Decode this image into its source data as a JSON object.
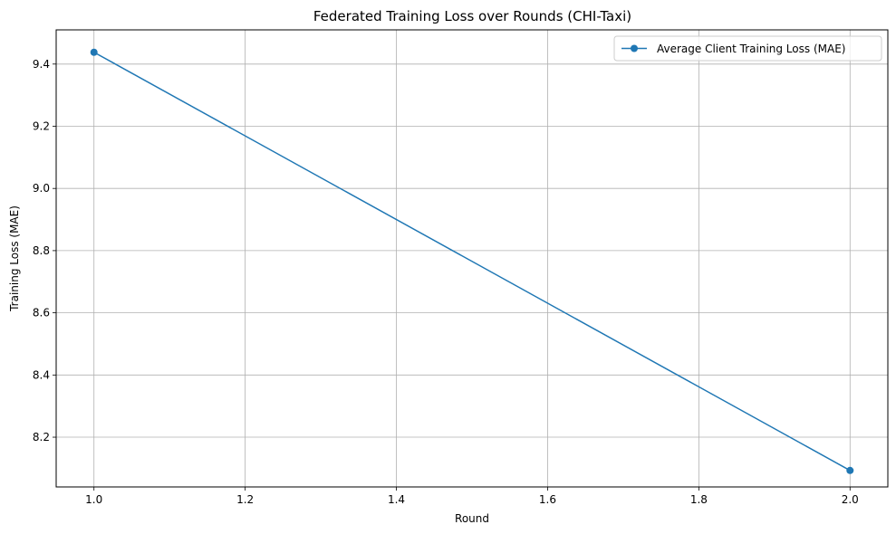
{
  "chart_data": {
    "type": "line",
    "title": "Federated Training Loss over Rounds (CHI-Taxi)",
    "xlabel": "Round",
    "ylabel": "Training Loss (MAE)",
    "xlim": [
      0.95,
      2.05
    ],
    "ylim": [
      8.04,
      9.51
    ],
    "xticks": [
      1.0,
      1.2,
      1.4,
      1.6,
      1.8,
      2.0
    ],
    "xtick_labels": [
      "1.0",
      "1.2",
      "1.4",
      "1.6",
      "1.8",
      "2.0"
    ],
    "yticks": [
      8.2,
      8.4,
      8.6,
      8.8,
      9.0,
      9.2,
      9.4
    ],
    "ytick_labels": [
      "8.2",
      "8.4",
      "8.6",
      "8.8",
      "9.0",
      "9.2",
      "9.4"
    ],
    "grid": true,
    "legend": "top-right",
    "series": [
      {
        "name": "Average Client Training Loss (MAE)",
        "color": "#1f77b4",
        "marker": "circle",
        "x": [
          1,
          2
        ],
        "values": [
          9.438,
          8.093
        ]
      }
    ]
  }
}
